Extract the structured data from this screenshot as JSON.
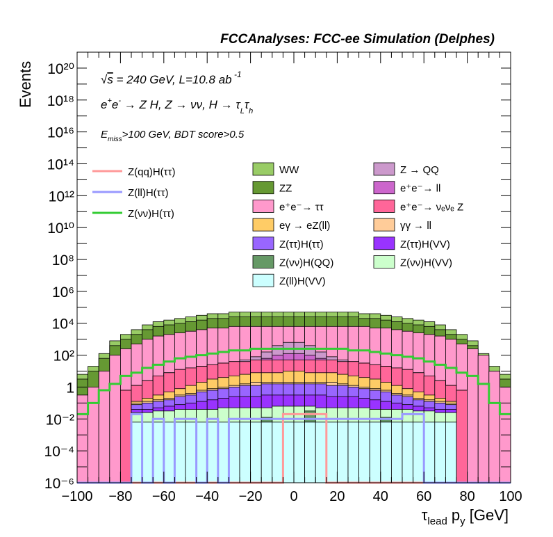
{
  "chart_data": {
    "type": "bar",
    "stacked": true,
    "log_y": true,
    "title": "FCCAnalyses: FCC-ee Simulation (Delphes)",
    "xlabel": "τ_lead p_y [GeV]",
    "ylabel": "Events",
    "xlim": [
      -100,
      100
    ],
    "ylim": [
      1e-06,
      1e+21
    ],
    "x_bin_width": 5,
    "annotations": {
      "line1": "√s = 240 GeV, L=10.8 ab⁻¹",
      "line2": "e⁺e⁻ → Z H, Z → νν, H → τ_L τ_h",
      "line3": "E_miss>100 GeV, BDT score>0.5"
    },
    "x_ticks": [
      -100,
      -80,
      -60,
      -40,
      -20,
      0,
      20,
      40,
      60,
      80,
      100
    ],
    "y_ticks": [
      {
        "exp": -6,
        "label": "10⁻⁶"
      },
      {
        "exp": -4,
        "label": "10⁻⁴"
      },
      {
        "exp": -2,
        "label": "10⁻²"
      },
      {
        "exp": 0,
        "label": "1"
      },
      {
        "exp": 2,
        "label": "10²"
      },
      {
        "exp": 4,
        "label": "10⁴"
      },
      {
        "exp": 6,
        "label": "10⁶"
      },
      {
        "exp": 8,
        "label": "10⁸"
      },
      {
        "exp": 10,
        "label": "10¹⁰"
      },
      {
        "exp": 12,
        "label": "10¹²"
      },
      {
        "exp": 14,
        "label": "10¹⁴"
      },
      {
        "exp": 16,
        "label": "10¹⁶"
      },
      {
        "exp": 18,
        "label": "10¹⁸"
      },
      {
        "exp": 20,
        "label": "10²⁰"
      }
    ],
    "x": [
      -97.5,
      -92.5,
      -87.5,
      -82.5,
      -77.5,
      -72.5,
      -67.5,
      -62.5,
      -57.5,
      -52.5,
      -47.5,
      -42.5,
      -37.5,
      -32.5,
      -27.5,
      -22.5,
      -17.5,
      -12.5,
      -7.5,
      -2.5,
      2.5,
      7.5,
      12.5,
      17.5,
      22.5,
      27.5,
      32.5,
      37.5,
      42.5,
      47.5,
      52.5,
      57.5,
      62.5,
      67.5,
      72.5,
      77.5,
      82.5,
      87.5,
      92.5,
      97.5
    ],
    "stack_cumulative_log10": [
      {
        "name": "Z(ll)H(VV)",
        "color": "#ccffff",
        "log10": [
          -6,
          -6,
          -6,
          -6,
          -6,
          -2.2,
          -2.2,
          -2.2,
          -2.2,
          -2.2,
          -2.2,
          -2.2,
          -2.2,
          -2.2,
          -2.2,
          -2.2,
          -2.2,
          -2.2,
          -2.2,
          -2.2,
          -2.2,
          -2.2,
          -2.2,
          -2.2,
          -2.2,
          -2.2,
          -2.2,
          -2.2,
          -2.2,
          -2.2,
          -2.2,
          -2.2,
          -2.2,
          -2.2,
          -2.2,
          -6,
          -6,
          -6,
          -6,
          -6
        ]
      },
      {
        "name": "Z(νν)H(QQ)",
        "color": "#669966",
        "log10": [
          -6,
          -6,
          -6,
          -6,
          -6,
          -2.2,
          -2.2,
          -2.2,
          -2.2,
          -2.2,
          -2.2,
          -2.2,
          -2.2,
          -2.2,
          -2.2,
          -2.2,
          -2.2,
          -1.9,
          -2.2,
          -2.2,
          -2.2,
          -1.5,
          -2.2,
          -2.2,
          -2.2,
          -2.2,
          -2.2,
          -2.2,
          -1.9,
          -2.2,
          -2.2,
          -2.2,
          -2.2,
          -2.2,
          -2.2,
          -6,
          -6,
          -6,
          -6,
          -6
        ]
      },
      {
        "name": "Z(νν)H(VV)",
        "color": "#ccffcc",
        "log10": [
          -6,
          -6,
          -6,
          -6,
          -6,
          -1.6,
          -1.6,
          -1.5,
          -1.5,
          -1.4,
          -1.4,
          -1.4,
          -1.4,
          -1.3,
          -1.3,
          -1.3,
          -1.3,
          -1.3,
          -1.2,
          -1.2,
          -1.2,
          -1.2,
          -1.3,
          -1.3,
          -1.3,
          -1.3,
          -1.3,
          -1.4,
          -1.4,
          -1.4,
          -1.4,
          -1.5,
          -1.5,
          -1.6,
          -1.6,
          -6,
          -6,
          -6,
          -6,
          -6
        ]
      },
      {
        "name": "Z(ττ)H(VV)",
        "color": "#9933ff",
        "log10": [
          -6,
          -6,
          -6,
          -6,
          -6,
          -1.4,
          -1.4,
          -1.3,
          -1.2,
          -1.1,
          -1.0,
          -0.9,
          -0.8,
          -0.7,
          -0.6,
          -0.6,
          -0.6,
          -0.5,
          -0.5,
          -0.5,
          -0.5,
          -0.5,
          -0.5,
          -0.6,
          -0.6,
          -0.6,
          -0.7,
          -0.8,
          -0.9,
          -1.0,
          -1.1,
          -1.2,
          -1.3,
          -1.4,
          -1.4,
          -6,
          -6,
          -6,
          -6,
          -6
        ]
      },
      {
        "name": "Z(ττ)H(ττ)",
        "color": "#9966ff",
        "log10": [
          -6,
          -6,
          -6,
          -6,
          -6,
          -1.1,
          -1.0,
          -0.9,
          -0.8,
          -0.6,
          -0.5,
          -0.3,
          -0.2,
          -0.1,
          0.0,
          0.1,
          0.1,
          0.2,
          0.2,
          0.2,
          0.2,
          0.2,
          0.2,
          0.1,
          0.1,
          0.0,
          -0.1,
          -0.2,
          -0.3,
          -0.5,
          -0.6,
          -0.8,
          -0.9,
          -1.0,
          -1.1,
          -6,
          -6,
          -6,
          -6,
          -6
        ]
      },
      {
        "name": "γγ → ll",
        "color": "#ffcc99",
        "log10": [
          -6,
          -6,
          -6,
          -6,
          -6,
          -1.0,
          -0.9,
          -0.8,
          -0.7,
          -0.5,
          -0.4,
          -0.2,
          -0.1,
          0.0,
          0.1,
          0.2,
          0.3,
          0.3,
          0.3,
          0.3,
          0.3,
          0.3,
          0.3,
          0.3,
          0.2,
          0.1,
          0.0,
          -0.1,
          -0.2,
          -0.4,
          -0.5,
          -0.7,
          -0.8,
          -0.9,
          -1.0,
          -6,
          -6,
          -6,
          -6,
          -6
        ]
      },
      {
        "name": "eγ → eZ(ll)",
        "color": "#ffcc66",
        "log10": [
          -6,
          -6,
          -6,
          -6,
          -6,
          -0.9,
          -0.7,
          -0.5,
          -0.3,
          -0.1,
          0.1,
          0.3,
          0.5,
          0.6,
          0.7,
          0.8,
          0.9,
          0.9,
          0.9,
          1.0,
          1.0,
          0.9,
          0.9,
          0.9,
          0.8,
          0.7,
          0.6,
          0.5,
          0.3,
          0.1,
          -0.1,
          -0.3,
          -0.5,
          -0.7,
          -0.9,
          -6,
          -6,
          -6,
          -6,
          -6
        ]
      },
      {
        "name": "e⁺e⁻ → νₑνₑ Z",
        "color": "#ff6699",
        "log10": [
          -6,
          -6,
          -6,
          -6,
          -0.2,
          0.1,
          0.4,
          0.7,
          0.9,
          1.1,
          1.2,
          1.3,
          1.4,
          1.5,
          1.6,
          1.6,
          1.7,
          1.7,
          1.7,
          1.7,
          1.7,
          1.7,
          1.7,
          1.7,
          1.6,
          1.6,
          1.5,
          1.4,
          1.3,
          1.2,
          1.1,
          0.9,
          0.7,
          0.4,
          0.1,
          -0.2,
          -6,
          -6,
          -6,
          -6
        ]
      },
      {
        "name": "e⁺e⁻ → ll",
        "color": "#cc66cc",
        "log10": [
          -6,
          -6,
          -6,
          -6,
          -0.2,
          0.1,
          0.4,
          0.7,
          0.9,
          1.1,
          1.2,
          1.3,
          1.4,
          1.5,
          1.6,
          1.6,
          1.7,
          1.8,
          2.0,
          2.1,
          2.1,
          2.0,
          1.8,
          1.7,
          1.6,
          1.6,
          1.5,
          1.4,
          1.3,
          1.2,
          1.1,
          0.9,
          0.7,
          0.4,
          0.1,
          -0.2,
          -6,
          -6,
          -6,
          -6
        ]
      },
      {
        "name": "Z → QQ",
        "color": "#cc99cc",
        "log10": [
          -6,
          -6,
          -6,
          -6,
          -0.2,
          0.1,
          0.4,
          0.7,
          0.9,
          1.1,
          1.2,
          1.3,
          1.4,
          1.5,
          1.6,
          1.7,
          1.9,
          2.2,
          2.6,
          2.8,
          2.8,
          2.6,
          2.2,
          1.9,
          1.7,
          1.6,
          1.5,
          1.4,
          1.3,
          1.2,
          1.1,
          0.9,
          0.7,
          0.4,
          0.1,
          -0.2,
          -6,
          -6,
          -6,
          -6
        ]
      },
      {
        "name": "e⁺e⁻ → ττ",
        "color": "#ff99cc",
        "log10": [
          -0.5,
          0.0,
          1.0,
          2.0,
          2.4,
          2.7,
          3.0,
          3.2,
          3.3,
          3.4,
          3.5,
          3.6,
          3.7,
          3.7,
          3.8,
          3.8,
          3.8,
          3.8,
          3.8,
          3.8,
          3.8,
          3.8,
          3.8,
          3.8,
          3.8,
          3.8,
          3.8,
          3.7,
          3.7,
          3.6,
          3.5,
          3.4,
          3.3,
          3.2,
          3.0,
          2.7,
          2.4,
          2.0,
          1.0,
          0.0
        ]
      },
      {
        "name": "ZZ",
        "color": "#669933",
        "log10": [
          0.5,
          1.0,
          1.8,
          2.6,
          3.0,
          3.3,
          3.6,
          3.8,
          3.9,
          4.0,
          4.1,
          4.2,
          4.3,
          4.3,
          4.4,
          4.4,
          4.4,
          4.4,
          4.4,
          4.4,
          4.4,
          4.4,
          4.4,
          4.4,
          4.4,
          4.4,
          4.3,
          4.3,
          4.2,
          4.1,
          4.0,
          3.9,
          3.8,
          3.6,
          3.3,
          3.0,
          2.6,
          1.8,
          1.0,
          0.5
        ]
      },
      {
        "name": "WW",
        "color": "#99cc66",
        "log10": [
          0.8,
          1.3,
          2.1,
          2.9,
          3.3,
          3.6,
          3.9,
          4.1,
          4.2,
          4.3,
          4.4,
          4.5,
          4.6,
          4.6,
          4.7,
          4.7,
          4.7,
          4.7,
          4.7,
          4.7,
          4.7,
          4.7,
          4.7,
          4.7,
          4.7,
          4.7,
          4.6,
          4.6,
          4.5,
          4.4,
          4.3,
          4.2,
          4.1,
          3.9,
          3.6,
          3.3,
          2.9,
          2.1,
          1.3,
          0.8
        ]
      }
    ],
    "overlay_lines": [
      {
        "name": "Z(qq)H(ττ)",
        "color": "#ff9999",
        "log10": [
          -6,
          -6,
          -6,
          -6,
          -6,
          -6,
          -6,
          -6,
          -6,
          -6,
          -6,
          -6,
          -6,
          -6,
          -6,
          -6,
          -6,
          -6,
          -6,
          -1.7,
          -1.7,
          -1.7,
          -1.7,
          -6,
          -6,
          -6,
          -6,
          -6,
          -6,
          -6,
          -6,
          -6,
          -6,
          -6,
          -6,
          -6,
          -6,
          -6,
          -6,
          -6
        ]
      },
      {
        "name": "Z(ll)H(ττ)",
        "color": "#9999ff",
        "log10": [
          -6,
          -6,
          -6,
          -6,
          -6,
          -1.7,
          -6,
          -2.0,
          -6,
          -2.0,
          -2.0,
          -6,
          -2.0,
          -6,
          -2.0,
          -2.0,
          -2.0,
          -2.0,
          -2.0,
          -2.0,
          -2.0,
          -2.0,
          -2.0,
          -2.0,
          -2.0,
          -2.0,
          -2.0,
          -2.0,
          -2.0,
          -2.0,
          -1.7,
          -1.7,
          -6,
          -6,
          -6,
          -6,
          -6,
          -6,
          -6,
          -6
        ]
      },
      {
        "name": "Z(νν)H(ττ)",
        "color": "#33cc33",
        "log10": [
          -1.7,
          -1.0,
          -0.2,
          0.2,
          0.7,
          0.9,
          1.2,
          1.4,
          1.6,
          1.8,
          1.9,
          2.0,
          2.1,
          2.2,
          2.3,
          2.3,
          2.4,
          2.4,
          2.4,
          2.4,
          2.4,
          2.4,
          2.4,
          2.4,
          2.4,
          2.3,
          2.3,
          2.2,
          2.1,
          2.0,
          1.9,
          1.8,
          1.6,
          1.4,
          1.2,
          0.9,
          0.7,
          0.2,
          -1.0,
          -1.7
        ]
      }
    ],
    "legend": {
      "left": [
        "Z(qq)H(ττ)",
        "Z(ll)H(ττ)",
        "Z(νν)H(ττ)"
      ],
      "middle": [
        "WW",
        "ZZ",
        "e⁺e⁻→ ττ",
        "eγ → eZ(ll)",
        "Z(ττ)H(ττ)",
        "Z(νν)H(QQ)",
        "Z(ll)H(VV)"
      ],
      "right": [
        "Z → QQ",
        "e⁺e⁻→ ll",
        "e⁺e⁻→ νₑνₑ Z",
        "γγ → ll",
        "Z(ττ)H(VV)",
        "Z(νν)H(VV)"
      ]
    }
  }
}
